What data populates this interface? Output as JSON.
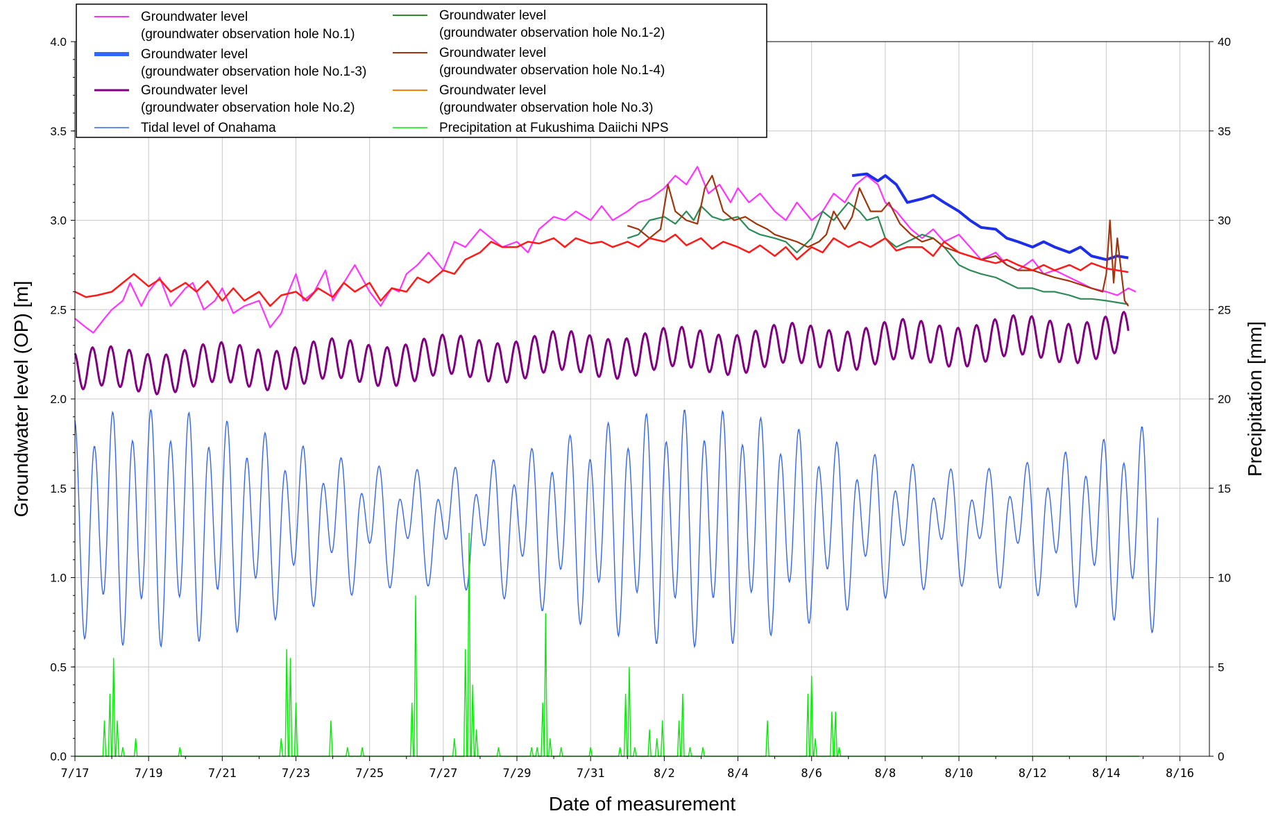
{
  "chart_data": {
    "type": "line",
    "xlabel": "Date of measurement",
    "ylabel_left": "Groundwater level (OP) [m]",
    "ylabel_right": "Precipitation [mm]",
    "x_tick_labels": [
      "7/17",
      "7/19",
      "7/21",
      "7/23",
      "7/25",
      "7/27",
      "7/29",
      "7/31",
      "8/2",
      "8/4",
      "8/6",
      "8/8",
      "8/10",
      "8/12",
      "8/14",
      "8/16"
    ],
    "x_tick_day_index": [
      0,
      2,
      4,
      6,
      8,
      10,
      12,
      14,
      16,
      18,
      20,
      22,
      24,
      26,
      28,
      30
    ],
    "xlim_days": [
      0,
      30.8
    ],
    "y_left_ticks": [
      "0.0",
      "0.5",
      "1.0",
      "1.5",
      "2.0",
      "2.5",
      "3.0",
      "3.5",
      "4.0"
    ],
    "y_left_lim": [
      0,
      4
    ],
    "y_right_ticks": [
      "0",
      "5",
      "10",
      "15",
      "20",
      "25",
      "30",
      "35",
      "40"
    ],
    "y_right_lim": [
      0,
      40
    ],
    "grid": true,
    "legend_position": "top-left",
    "legend": [
      {
        "line1": "Groundwater level",
        "line2": "(groundwater observation hole No.1)",
        "color": "#ff33ff",
        "width": 2
      },
      {
        "line1": "Groundwater level",
        "line2": "(groundwater observation hole No.1-3)",
        "color": "#3366ff",
        "width": 6
      },
      {
        "line1": "Groundwater level",
        "line2": "(groundwater observation hole No.2)",
        "color": "#800080",
        "width": 3
      },
      {
        "line1": "Tidal level of Onahama",
        "line2": "",
        "color": "#3366ee",
        "width": 1.5
      },
      {
        "line1": "Groundwater level",
        "line2": "(groundwater observation hole No.1-2)",
        "color": "#2e8b2e",
        "width": 2
      },
      {
        "line1": "Groundwater level",
        "line2": "(groundwater observation hole No.1-4)",
        "color": "#a0340a",
        "width": 2
      },
      {
        "line1": "Groundwater level",
        "line2": "(groundwater observation hole No.3)",
        "color": "#ff8000",
        "width": 2
      },
      {
        "line1": "Precipitation at Fukushima Daiichi NPS",
        "line2": "",
        "color": "#00ee00",
        "width": 1.5
      }
    ],
    "series": [
      {
        "name": "hole No.1",
        "color": "#ff33ff",
        "width": 2.2,
        "axis": "left",
        "x": [
          0,
          0.3,
          0.5,
          0.8,
          1.0,
          1.3,
          1.5,
          1.8,
          2.0,
          2.3,
          2.6,
          3.0,
          3.2,
          3.5,
          3.8,
          4.0,
          4.3,
          4.6,
          5.0,
          5.3,
          5.6,
          5.8,
          6.0,
          6.2,
          6.5,
          6.8,
          7.0,
          7.3,
          7.6,
          8.0,
          8.3,
          8.6,
          8.8,
          9.0,
          9.3,
          9.6,
          10.0,
          10.3,
          10.6,
          11.0,
          11.3,
          11.6,
          12.0,
          12.3,
          12.6,
          13.0,
          13.3,
          13.6,
          14.0,
          14.3,
          14.6,
          15.0,
          15.3,
          15.6,
          16.0,
          16.3,
          16.6,
          16.9,
          17.2,
          17.5,
          17.8,
          18.0,
          18.3,
          18.6,
          19.0,
          19.3,
          19.6,
          20.0,
          20.3,
          20.6,
          20.9,
          21.2,
          21.5,
          21.8,
          22.0,
          22.3,
          22.5,
          22.7,
          23.0,
          23.3,
          23.6,
          24.0,
          24.3,
          24.6,
          25.0,
          25.3,
          25.6,
          26.0,
          26.3,
          26.6,
          27.0,
          27.3,
          27.6,
          28.0,
          28.3,
          28.6,
          28.8
        ],
        "y": [
          2.45,
          2.4,
          2.37,
          2.45,
          2.5,
          2.55,
          2.65,
          2.52,
          2.6,
          2.68,
          2.52,
          2.62,
          2.65,
          2.5,
          2.55,
          2.62,
          2.48,
          2.52,
          2.55,
          2.4,
          2.48,
          2.6,
          2.7,
          2.55,
          2.6,
          2.72,
          2.55,
          2.65,
          2.75,
          2.6,
          2.52,
          2.62,
          2.6,
          2.7,
          2.75,
          2.82,
          2.72,
          2.88,
          2.85,
          2.95,
          2.9,
          2.85,
          2.88,
          2.82,
          2.95,
          3.02,
          3.0,
          3.05,
          3.0,
          3.08,
          3.0,
          3.05,
          3.1,
          3.12,
          3.18,
          3.25,
          3.2,
          3.3,
          3.15,
          3.2,
          3.1,
          3.18,
          3.1,
          3.15,
          3.05,
          3.0,
          3.1,
          3.0,
          3.05,
          3.15,
          3.1,
          3.2,
          3.25,
          3.2,
          3.1,
          3.05,
          3.0,
          2.95,
          2.9,
          2.95,
          2.88,
          2.92,
          2.85,
          2.78,
          2.82,
          2.75,
          2.72,
          2.78,
          2.7,
          2.72,
          2.68,
          2.65,
          2.62,
          2.6,
          2.58,
          2.62,
          2.6
        ]
      },
      {
        "name": "hole No.1-3",
        "color": "#1c2ee8",
        "width": 4,
        "axis": "left",
        "x": [
          21.1,
          21.5,
          21.8,
          22.0,
          22.3,
          22.6,
          23.0,
          23.3,
          23.6,
          24.0,
          24.3,
          24.6,
          25.0,
          25.3,
          25.6,
          26.0,
          26.3,
          26.6,
          27.0,
          27.3,
          27.6,
          28.0,
          28.3,
          28.6
        ],
        "y": [
          3.25,
          3.26,
          3.22,
          3.25,
          3.2,
          3.1,
          3.12,
          3.14,
          3.1,
          3.05,
          3.0,
          2.96,
          2.95,
          2.9,
          2.88,
          2.85,
          2.88,
          2.85,
          2.82,
          2.85,
          2.8,
          2.78,
          2.8,
          2.79
        ]
      },
      {
        "name": "hole No.1-2",
        "color": "#2e8b57",
        "width": 2.2,
        "axis": "left",
        "x": [
          15.0,
          15.3,
          15.6,
          16.0,
          16.3,
          16.6,
          16.8,
          17.0,
          17.3,
          17.6,
          18.0,
          18.3,
          18.6,
          19.0,
          19.3,
          19.6,
          20.0,
          20.3,
          20.6,
          21.0,
          21.3,
          21.5,
          21.8,
          22.0,
          22.3,
          22.6,
          23.0,
          23.3,
          23.6,
          24.0,
          24.3,
          24.6,
          25.0,
          25.3,
          25.6,
          26.0,
          26.3,
          26.6,
          27.0,
          27.3,
          27.6,
          28.0,
          28.3,
          28.6
        ],
        "y": [
          2.9,
          2.92,
          3.0,
          3.02,
          2.98,
          3.05,
          3.0,
          3.08,
          3.02,
          3.0,
          3.02,
          2.95,
          2.92,
          2.9,
          2.88,
          2.82,
          2.9,
          3.05,
          3.0,
          3.1,
          3.05,
          3.0,
          3.02,
          2.9,
          2.85,
          2.88,
          2.92,
          2.9,
          2.85,
          2.75,
          2.72,
          2.7,
          2.68,
          2.65,
          2.62,
          2.62,
          2.6,
          2.6,
          2.58,
          2.56,
          2.56,
          2.55,
          2.54,
          2.53
        ]
      },
      {
        "name": "hole No.1-4",
        "color": "#a0340a",
        "width": 2.2,
        "axis": "left",
        "x": [
          15.0,
          15.3,
          15.6,
          15.9,
          16.1,
          16.3,
          16.6,
          16.9,
          17.1,
          17.3,
          17.6,
          17.9,
          18.2,
          18.5,
          18.8,
          19.0,
          19.3,
          19.6,
          19.9,
          20.2,
          20.4,
          20.6,
          20.9,
          21.1,
          21.3,
          21.6,
          21.9,
          22.1,
          22.4,
          22.7,
          23.0,
          23.3,
          23.6,
          24.0,
          24.3,
          24.6,
          25.0,
          25.3,
          25.6,
          26.0,
          26.3,
          26.6,
          27.0,
          27.3,
          27.6,
          27.9,
          28.0,
          28.1,
          28.2,
          28.3,
          28.5,
          28.6
        ],
        "y": [
          2.97,
          2.95,
          2.9,
          2.95,
          3.2,
          3.05,
          3.0,
          2.98,
          3.18,
          3.25,
          3.05,
          3.0,
          3.02,
          2.98,
          2.95,
          2.92,
          2.9,
          2.88,
          2.85,
          2.88,
          2.92,
          3.05,
          2.95,
          3.02,
          3.18,
          3.05,
          3.05,
          3.1,
          2.98,
          2.92,
          2.88,
          2.9,
          2.85,
          2.82,
          2.8,
          2.78,
          2.8,
          2.75,
          2.72,
          2.72,
          2.7,
          2.68,
          2.66,
          2.64,
          2.62,
          2.6,
          2.7,
          3.0,
          2.65,
          2.9,
          2.55,
          2.52
        ]
      },
      {
        "name": "hole No.3",
        "color": "#ff1a1a",
        "width": 2.5,
        "axis": "left",
        "x": [
          0,
          0.3,
          0.6,
          1.0,
          1.3,
          1.6,
          2.0,
          2.3,
          2.6,
          3.0,
          3.3,
          3.6,
          4.0,
          4.3,
          4.6,
          5.0,
          5.3,
          5.6,
          6.0,
          6.3,
          6.6,
          7.0,
          7.3,
          7.6,
          8.0,
          8.3,
          8.6,
          9.0,
          9.3,
          9.6,
          10.0,
          10.3,
          10.6,
          11.0,
          11.3,
          11.6,
          12.0,
          12.3,
          12.6,
          13.0,
          13.3,
          13.6,
          14.0,
          14.3,
          14.6,
          15.0,
          15.3,
          15.6,
          16.0,
          16.3,
          16.6,
          17.0,
          17.3,
          17.6,
          18.0,
          18.3,
          18.6,
          19.0,
          19.3,
          19.6,
          20.0,
          20.3,
          20.6,
          21.0,
          21.3,
          21.6,
          22.0,
          22.3,
          22.6,
          23.0,
          23.3,
          23.6,
          24.0,
          24.3,
          24.6,
          25.0,
          25.3,
          25.6,
          26.0,
          26.3,
          26.6,
          27.0,
          27.3,
          27.6,
          28.0,
          28.3,
          28.6
        ],
        "y": [
          2.6,
          2.57,
          2.58,
          2.6,
          2.65,
          2.7,
          2.63,
          2.67,
          2.6,
          2.65,
          2.6,
          2.66,
          2.55,
          2.62,
          2.55,
          2.6,
          2.52,
          2.58,
          2.6,
          2.55,
          2.62,
          2.57,
          2.65,
          2.6,
          2.65,
          2.55,
          2.62,
          2.6,
          2.68,
          2.65,
          2.72,
          2.7,
          2.78,
          2.82,
          2.88,
          2.85,
          2.85,
          2.88,
          2.87,
          2.9,
          2.85,
          2.9,
          2.87,
          2.88,
          2.85,
          2.88,
          2.85,
          2.9,
          2.88,
          2.92,
          2.86,
          2.9,
          2.84,
          2.88,
          2.85,
          2.82,
          2.86,
          2.8,
          2.85,
          2.78,
          2.85,
          2.82,
          2.9,
          2.85,
          2.88,
          2.85,
          2.9,
          2.83,
          2.85,
          2.85,
          2.8,
          2.88,
          2.82,
          2.8,
          2.78,
          2.76,
          2.78,
          2.75,
          2.72,
          2.75,
          2.72,
          2.75,
          2.72,
          2.76,
          2.73,
          2.72,
          2.71
        ]
      }
    ],
    "hole2": {
      "name": "hole No.2",
      "color": "#800080",
      "width": 3,
      "axis": "left",
      "x_start": 0,
      "x_end": 28.6,
      "mean_start": 2.15,
      "mean_end": 2.35,
      "amplitude": 0.11,
      "period_days": 0.5,
      "phase": 0.3
    },
    "tide": {
      "name": "Tidal level of Onahama",
      "color": "#3366ee",
      "width": 1.4,
      "axis": "left",
      "x_start": 0,
      "x_end": 29.4,
      "mean": 1.3,
      "semidiurnal_amp": 0.38,
      "diurnal_amp": 0.16,
      "period_days": 0.5175,
      "spring_neap_days": 14.8,
      "modulation": 0.45
    },
    "precipitation": {
      "name": "Precipitation at Fukushima Daiichi NPS",
      "color": "#00ee00",
      "width": 1.4,
      "axis": "right",
      "x_end": 28.9,
      "events": [
        {
          "x": 0.8,
          "mm": 2.0
        },
        {
          "x": 0.95,
          "mm": 3.5
        },
        {
          "x": 1.05,
          "mm": 5.5
        },
        {
          "x": 1.15,
          "mm": 2.0
        },
        {
          "x": 1.3,
          "mm": 0.5
        },
        {
          "x": 1.65,
          "mm": 1.0
        },
        {
          "x": 2.85,
          "mm": 0.5
        },
        {
          "x": 5.6,
          "mm": 1.0
        },
        {
          "x": 5.75,
          "mm": 6.0
        },
        {
          "x": 5.85,
          "mm": 5.5
        },
        {
          "x": 6.0,
          "mm": 3.0
        },
        {
          "x": 6.95,
          "mm": 2.0
        },
        {
          "x": 7.4,
          "mm": 0.5
        },
        {
          "x": 7.8,
          "mm": 0.5
        },
        {
          "x": 9.15,
          "mm": 3.0
        },
        {
          "x": 9.25,
          "mm": 9.0
        },
        {
          "x": 10.3,
          "mm": 1.0
        },
        {
          "x": 10.6,
          "mm": 6.0
        },
        {
          "x": 10.7,
          "mm": 12.5
        },
        {
          "x": 10.8,
          "mm": 4.0
        },
        {
          "x": 10.9,
          "mm": 1.5
        },
        {
          "x": 11.5,
          "mm": 0.5
        },
        {
          "x": 12.4,
          "mm": 0.5
        },
        {
          "x": 12.55,
          "mm": 0.5
        },
        {
          "x": 12.7,
          "mm": 3.0
        },
        {
          "x": 12.78,
          "mm": 8.0
        },
        {
          "x": 12.9,
          "mm": 1.0
        },
        {
          "x": 13.2,
          "mm": 0.5
        },
        {
          "x": 14.0,
          "mm": 0.5
        },
        {
          "x": 14.8,
          "mm": 0.5
        },
        {
          "x": 14.95,
          "mm": 3.5
        },
        {
          "x": 15.05,
          "mm": 5.0
        },
        {
          "x": 15.2,
          "mm": 0.5
        },
        {
          "x": 15.6,
          "mm": 1.5
        },
        {
          "x": 15.8,
          "mm": 1.0
        },
        {
          "x": 15.95,
          "mm": 2.0
        },
        {
          "x": 16.4,
          "mm": 2.0
        },
        {
          "x": 16.5,
          "mm": 3.5
        },
        {
          "x": 16.7,
          "mm": 0.5
        },
        {
          "x": 17.05,
          "mm": 0.5
        },
        {
          "x": 18.8,
          "mm": 2.0
        },
        {
          "x": 19.9,
          "mm": 3.5
        },
        {
          "x": 20.0,
          "mm": 4.5
        },
        {
          "x": 20.1,
          "mm": 1.0
        },
        {
          "x": 20.55,
          "mm": 2.5
        },
        {
          "x": 20.65,
          "mm": 2.5
        },
        {
          "x": 20.75,
          "mm": 0.5
        }
      ]
    }
  }
}
